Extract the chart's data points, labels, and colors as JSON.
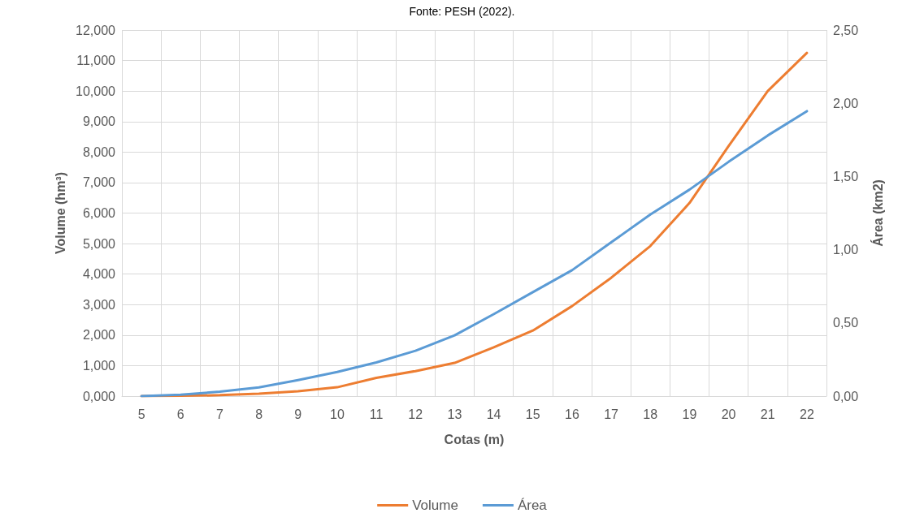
{
  "chart_data": {
    "type": "line",
    "annotations": [
      "Fonte: PESH (2022)."
    ],
    "xlabel": "Cotas (m)",
    "ylabel": "Volume (hm³)",
    "y2label": "Área (km2)",
    "categories": [
      "5",
      "6",
      "7",
      "8",
      "9",
      "10",
      "11",
      "12",
      "13",
      "14",
      "15",
      "16",
      "17",
      "18",
      "19",
      "20",
      "21",
      "22"
    ],
    "series": [
      {
        "name": "Volume",
        "color": "#ed7d31",
        "values": [
          0,
          0.01,
          0.03,
          0.08,
          0.16,
          0.29,
          0.6,
          0.82,
          1.09,
          1.6,
          2.15,
          2.95,
          3.88,
          4.92,
          6.33,
          8.2,
          10.0,
          11.25
        ]
      },
      {
        "name": "Área",
        "color": "#5b9bd5",
        "axis": "y2",
        "values": [
          0,
          0.01,
          0.03,
          0.06,
          0.11,
          0.165,
          0.23,
          0.31,
          0.415,
          0.56,
          0.71,
          0.86,
          1.05,
          1.24,
          1.41,
          1.6,
          1.78,
          1.946
        ]
      }
    ],
    "ylim": [
      0,
      12
    ],
    "yticks": [
      {
        "value": 0,
        "label": "0,000"
      },
      {
        "value": 1,
        "label": "1,000"
      },
      {
        "value": 2,
        "label": "2,000"
      },
      {
        "value": 3,
        "label": "3,000"
      },
      {
        "value": 4,
        "label": "4,000"
      },
      {
        "value": 5,
        "label": "5,000"
      },
      {
        "value": 6,
        "label": "6,000"
      },
      {
        "value": 7,
        "label": "7,000"
      },
      {
        "value": 8,
        "label": "8,000"
      },
      {
        "value": 9,
        "label": "9,000"
      },
      {
        "value": 10,
        "label": "10,000"
      },
      {
        "value": 11,
        "label": "11,000"
      },
      {
        "value": 12,
        "label": "12,000"
      }
    ],
    "y2lim": [
      0,
      2.5
    ],
    "y2ticks": [
      {
        "value": 0,
        "label": "0,00"
      },
      {
        "value": 0.5,
        "label": "0,50"
      },
      {
        "value": 1,
        "label": "1,00"
      },
      {
        "value": 1.5,
        "label": "1,50"
      },
      {
        "value": 2,
        "label": "2,00"
      },
      {
        "value": 2.5,
        "label": "2,50"
      }
    ],
    "grid": true,
    "legend": "bottom",
    "marker": "none",
    "line_style": "solid"
  }
}
